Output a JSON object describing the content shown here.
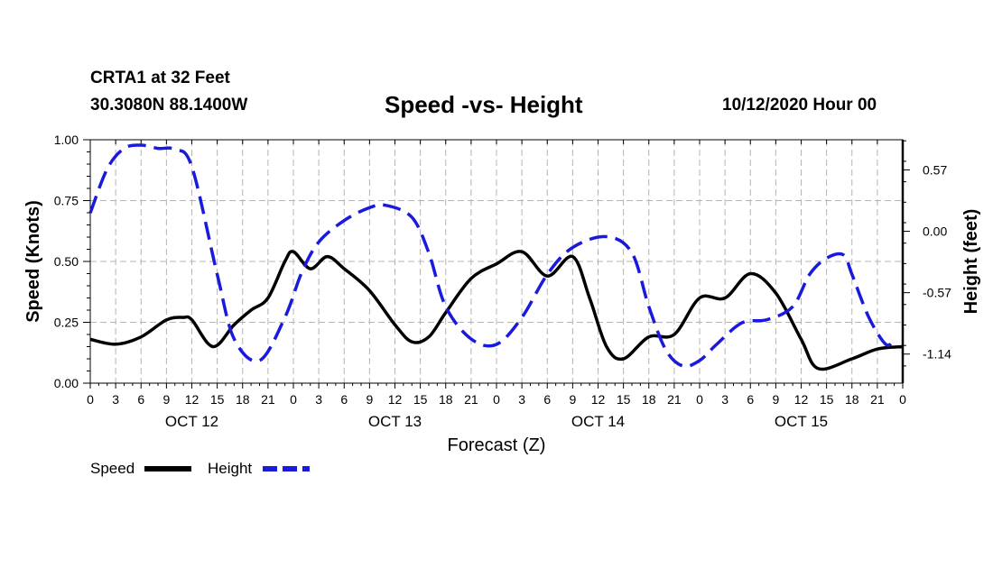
{
  "header": {
    "station": "CRTA1 at 32 Feet",
    "coords": "30.3080N 88.1400W",
    "title": "Speed -vs- Height",
    "datetime": "10/12/2020 Hour 00"
  },
  "chart_data": {
    "type": "line",
    "title": "Speed -vs- Height",
    "xlabel": "Forecast (Z)",
    "ylabel": "Speed (Knots)",
    "y2label": "Height (feet)",
    "xlim": [
      0,
      96
    ],
    "ylim": [
      0,
      1
    ],
    "y2lim": [
      -1.41,
      0.85
    ],
    "x_tick_hours": [
      0,
      3,
      6,
      9,
      12,
      15,
      18,
      21,
      24,
      27,
      30,
      33,
      36,
      39,
      42,
      45,
      48,
      51,
      54,
      57,
      60,
      63,
      66,
      69,
      72,
      75,
      78,
      81,
      84,
      87,
      90,
      93,
      96
    ],
    "x_tick_labels": [
      "0",
      "3",
      "6",
      "9",
      "12",
      "15",
      "18",
      "21",
      "0",
      "3",
      "6",
      "9",
      "12",
      "15",
      "18",
      "21",
      "0",
      "3",
      "6",
      "9",
      "12",
      "15",
      "18",
      "21",
      "0",
      "3",
      "6",
      "9",
      "12",
      "15",
      "18",
      "21",
      "0"
    ],
    "day_labels": [
      {
        "hour": 12,
        "label": "OCT 12"
      },
      {
        "hour": 36,
        "label": "OCT 13"
      },
      {
        "hour": 60,
        "label": "OCT 14"
      },
      {
        "hour": 84,
        "label": "OCT 15"
      }
    ],
    "y_ticks": [
      0,
      0.25,
      0.5,
      0.75,
      1.0
    ],
    "y_tick_labels": [
      "0.00",
      "0.25",
      "0.50",
      "0.75",
      "1.00"
    ],
    "y2_ticks": [
      0.57,
      0,
      -0.57,
      -1.14
    ],
    "y2_tick_labels": [
      "0.57",
      "0.00",
      "-0.57",
      "-1.14"
    ],
    "grid": true,
    "legend_position": "bottom-left",
    "series": [
      {
        "name": "Speed",
        "axis": "left",
        "color": "#000000",
        "dash": "solid",
        "x": [
          0,
          3,
          6,
          9,
          11,
          12,
          14.5,
          17,
          19,
          21,
          23,
          24,
          26,
          28,
          30,
          33,
          36,
          38,
          40,
          42,
          45,
          48,
          51,
          54,
          57,
          59,
          61,
          63,
          66,
          69,
          72,
          75,
          78,
          81,
          84,
          86,
          90,
          93,
          96
        ],
        "y": [
          0.18,
          0.16,
          0.19,
          0.26,
          0.27,
          0.26,
          0.15,
          0.24,
          0.3,
          0.35,
          0.5,
          0.54,
          0.47,
          0.52,
          0.47,
          0.38,
          0.24,
          0.17,
          0.19,
          0.29,
          0.43,
          0.49,
          0.54,
          0.44,
          0.52,
          0.35,
          0.15,
          0.1,
          0.19,
          0.2,
          0.35,
          0.35,
          0.45,
          0.37,
          0.18,
          0.06,
          0.1,
          0.14,
          0.15
        ]
      },
      {
        "name": "Height",
        "axis": "right",
        "color": "#1a1adc",
        "dash": "dashed",
        "x": [
          0,
          2,
          4,
          6,
          8,
          10,
          12,
          15,
          17,
          20,
          23,
          25,
          27,
          30,
          33,
          35,
          38,
          40,
          42,
          45,
          48,
          51,
          54,
          57,
          61,
          64,
          66,
          68,
          70,
          72,
          74,
          77,
          80,
          83,
          85,
          87,
          89,
          90,
          92,
          94,
          95
        ],
        "y": [
          0.17,
          0.58,
          0.77,
          0.8,
          0.77,
          0.76,
          0.6,
          -0.4,
          -1.0,
          -1.2,
          -0.8,
          -0.38,
          -0.1,
          0.1,
          0.22,
          0.24,
          0.13,
          -0.2,
          -0.7,
          -1.0,
          -1.05,
          -0.8,
          -0.4,
          -0.15,
          -0.05,
          -0.2,
          -0.7,
          -1.1,
          -1.25,
          -1.2,
          -1.05,
          -0.85,
          -0.82,
          -0.7,
          -0.4,
          -0.25,
          -0.22,
          -0.4,
          -0.8,
          -1.05,
          -1.0
        ]
      }
    ]
  }
}
